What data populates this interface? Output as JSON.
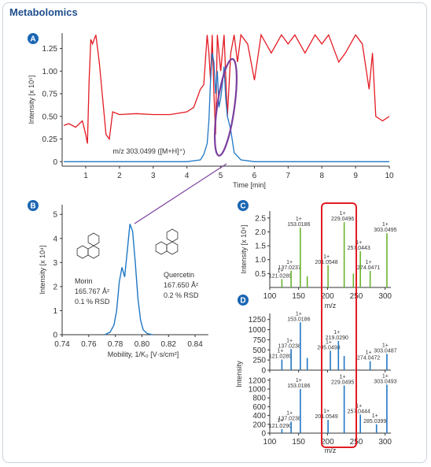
{
  "title": "Metabolomics",
  "colors": {
    "blue": "#1f77c4",
    "red": "#e31b23",
    "green": "#6ab42d",
    "purple": "#7b3f9e",
    "badge": "#1a66b3"
  },
  "chart_data": [
    {
      "id": "A",
      "type": "line",
      "xlabel": "Time [min]",
      "ylabel": "Intensity [x 10⁵]",
      "xlim": [
        0.3,
        10
      ],
      "ylim": [
        -0.05,
        1.42
      ],
      "xticks": [
        "1",
        "2",
        "3",
        "4",
        "5",
        "6",
        "7",
        "8",
        "9",
        "10"
      ],
      "yticks": [
        "0",
        "0.25",
        "0.50",
        "0.75",
        "1.00",
        "1.25"
      ],
      "annotation": "m/z 303.0499 ([M+H]⁺)",
      "series": [
        {
          "color": "red",
          "x": [
            0.35,
            0.5,
            0.7,
            0.9,
            1.0,
            1.05,
            1.1,
            1.15,
            1.2,
            1.3,
            1.4,
            1.5,
            1.6,
            1.7,
            1.8,
            2.0,
            2.5,
            3.0,
            3.5,
            4.0,
            4.2,
            4.4,
            4.5,
            4.6,
            4.65,
            4.7,
            4.75,
            4.8,
            4.85,
            4.9,
            5.0,
            5.1,
            5.2,
            5.3,
            5.4,
            5.5,
            5.6,
            5.8,
            6.0,
            6.2,
            6.5,
            6.8,
            7.0,
            7.2,
            7.5,
            7.8,
            8.0,
            8.2,
            8.5,
            8.7,
            9.0,
            9.2,
            9.4,
            9.5,
            9.6,
            9.8,
            10.0
          ],
          "y": [
            0.4,
            0.42,
            0.38,
            0.45,
            0.3,
            0.2,
            0.9,
            1.35,
            1.3,
            1.4,
            1.1,
            0.7,
            0.3,
            0.25,
            0.55,
            0.52,
            0.53,
            0.52,
            0.52,
            0.55,
            0.6,
            0.8,
            0.85,
            1.4,
            1.2,
            0.9,
            1.4,
            0.75,
            0.3,
            1.4,
            1.0,
            1.4,
            0.5,
            1.2,
            1.4,
            1.1,
            1.4,
            1.3,
            0.9,
            1.4,
            1.2,
            1.4,
            1.3,
            1.4,
            1.2,
            1.4,
            1.3,
            1.4,
            1.1,
            1.2,
            1.4,
            1.3,
            0.8,
            1.2,
            0.5,
            0.45,
            0.5
          ]
        },
        {
          "color": "blue",
          "x": [
            0.35,
            1.0,
            2.0,
            3.0,
            4.0,
            4.4,
            4.5,
            4.6,
            4.65,
            4.7,
            4.75,
            4.8,
            4.85,
            4.9,
            4.95,
            5.0,
            5.05,
            5.1,
            5.15,
            5.2,
            5.3,
            5.4,
            5.6,
            6.0,
            7.0,
            8.0,
            9.0,
            10.0
          ],
          "y": [
            0.0,
            0.0,
            0.0,
            0.0,
            0.0,
            0.02,
            0.08,
            0.2,
            0.45,
            0.9,
            1.2,
            1.1,
            0.75,
            1.0,
            0.6,
            0.7,
            0.85,
            1.05,
            0.7,
            0.5,
            0.35,
            0.1,
            0.02,
            0.0,
            0.0,
            0.0,
            0.0,
            0.0
          ]
        }
      ]
    },
    {
      "id": "B",
      "type": "line",
      "xlabel": "Mobility, 1/K₀ [V·s/cm²]",
      "ylabel": "Intensity [x 10⁴]",
      "xlim": [
        0.74,
        0.85
      ],
      "ylim": [
        0,
        5.4
      ],
      "xticks": [
        "0.74",
        "0.76",
        "0.78",
        "0.80",
        "0.82",
        "0.84"
      ],
      "yticks": [
        "0",
        "1",
        "2",
        "3",
        "4",
        "5"
      ],
      "series": [
        {
          "color": "blue",
          "x": [
            0.772,
            0.776,
            0.779,
            0.781,
            0.783,
            0.785,
            0.787,
            0.789,
            0.791,
            0.793,
            0.795,
            0.797,
            0.799,
            0.801,
            0.804,
            0.808
          ],
          "y": [
            0.0,
            0.1,
            0.4,
            1.0,
            2.2,
            2.8,
            2.4,
            3.5,
            4.6,
            4.3,
            3.0,
            1.5,
            0.6,
            0.2,
            0.05,
            0.0
          ]
        }
      ],
      "compounds": [
        {
          "name": "Morin",
          "ccs": "165.767 Å²",
          "rsd": "0.1 % RSD"
        },
        {
          "name": "Quercetin",
          "ccs": "167.650 Å²",
          "rsd": "0.2 % RSD"
        }
      ]
    },
    {
      "id": "C",
      "type": "bar",
      "xlabel": "m/z",
      "ylabel": "Intensity [x 10⁴]",
      "xlim": [
        100,
        310
      ],
      "ylim": [
        0,
        2.75
      ],
      "xticks": [
        "100",
        "150",
        "200",
        "250",
        "300"
      ],
      "yticks": [
        "0.5",
        "1.0",
        "1.5",
        "2.0",
        "2.5"
      ],
      "color": "green",
      "peaks": [
        {
          "mz": 121.0289,
          "y": 0.3,
          "label": "121.0289"
        },
        {
          "mz": 137.0237,
          "y": 0.6,
          "label": "137.0237"
        },
        {
          "mz": 153.0186,
          "y": 2.15,
          "label": "153.0186"
        },
        {
          "mz": 165.0,
          "y": 0.4
        },
        {
          "mz": 201.0548,
          "y": 0.8,
          "label": "201.0548"
        },
        {
          "mz": 229.0496,
          "y": 2.35,
          "label": "229.0496"
        },
        {
          "mz": 245.0,
          "y": 0.5
        },
        {
          "mz": 257.0443,
          "y": 1.3,
          "label": "257.0443"
        },
        {
          "mz": 274.0471,
          "y": 0.6,
          "label": "274.0471"
        },
        {
          "mz": 303.0495,
          "y": 1.95,
          "label": "303.0495"
        }
      ]
    },
    {
      "id": "D",
      "type": "bar",
      "xlabel": "m/z",
      "ylabel": "Intensity",
      "xlim": [
        100,
        310
      ],
      "xticks": [
        "100",
        "150",
        "200",
        "250",
        "300"
      ],
      "color": "blue",
      "panels": [
        {
          "ylim": [
            0,
            1400
          ],
          "yticks": [
            "0",
            "250",
            "500",
            "750",
            "1000",
            "1250"
          ],
          "peaks": [
            {
              "mz": 121.0289,
              "y": 260,
              "label": "121.0289"
            },
            {
              "mz": 137.0238,
              "y": 520,
              "label": "137.0238"
            },
            {
              "mz": 153.0186,
              "y": 1180,
              "label": "153.0186"
            },
            {
              "mz": 165.0,
              "y": 300
            },
            {
              "mz": 205.0498,
              "y": 480,
              "label": "205.0498"
            },
            {
              "mz": 219.029,
              "y": 720,
              "label": "219.0290"
            },
            {
              "mz": 229.0,
              "y": 350
            },
            {
              "mz": 274.0472,
              "y": 220,
              "label": "274.0472"
            },
            {
              "mz": 303.0487,
              "y": 400,
              "label": "303.0487"
            }
          ]
        },
        {
          "ylim": [
            0,
            1250
          ],
          "yticks": [
            "0",
            "200",
            "400",
            "600",
            "800",
            "1000",
            "1200"
          ],
          "peaks": [
            {
              "mz": 121.029,
              "y": 90,
              "label": "121.0290"
            },
            {
              "mz": 137.0238,
              "y": 260,
              "label": "137.0238"
            },
            {
              "mz": 153.0186,
              "y": 1000,
              "label": "153.0186"
            },
            {
              "mz": 201.0549,
              "y": 300,
              "label": "201.0549"
            },
            {
              "mz": 229.0495,
              "y": 1080,
              "label": "229.0495"
            },
            {
              "mz": 257.0444,
              "y": 420,
              "label": "257.0444"
            },
            {
              "mz": 285.0399,
              "y": 200,
              "label": "285.0399"
            },
            {
              "mz": 303.0493,
              "y": 1100,
              "label": "303.0493"
            }
          ]
        }
      ]
    }
  ]
}
